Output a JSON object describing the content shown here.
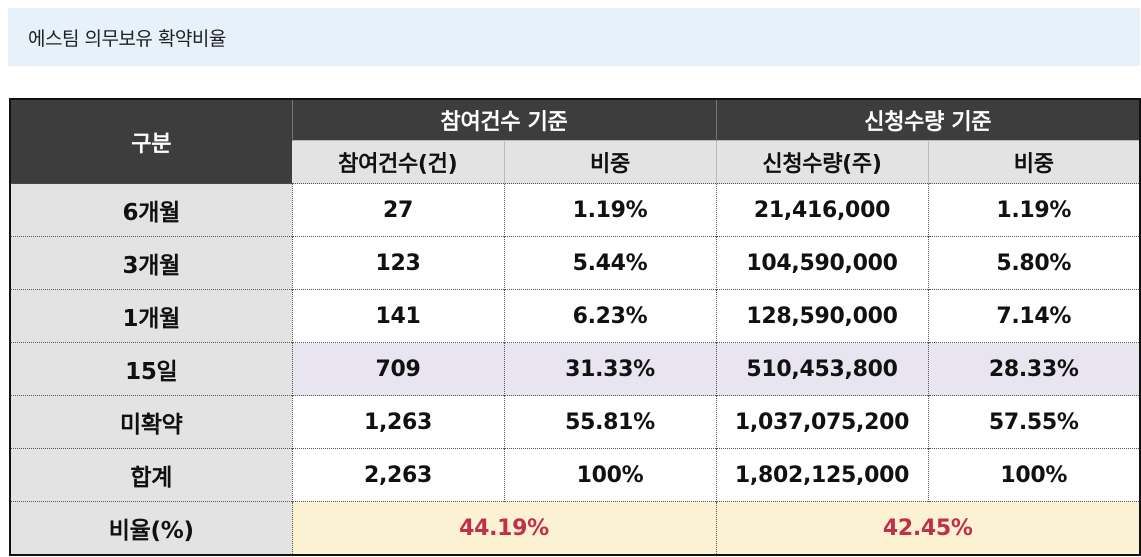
{
  "caption": "에스팀 의무보유 확약비율",
  "table": {
    "corner_label": "구분",
    "group_headers": [
      "참여건수 기준",
      "신청수량 기준"
    ],
    "sub_headers": [
      "참여건수(건)",
      "비중",
      "신청수량(주)",
      "비중"
    ],
    "rows": [
      {
        "label": "6개월",
        "values": [
          "27",
          "1.19%",
          "21,416,000",
          "1.19%"
        ]
      },
      {
        "label": "3개월",
        "values": [
          "123",
          "5.44%",
          "104,590,000",
          "5.80%"
        ]
      },
      {
        "label": "1개월",
        "values": [
          "141",
          "6.23%",
          "128,590,000",
          "7.14%"
        ]
      },
      {
        "label": "15일",
        "values": [
          "709",
          "31.33%",
          "510,453,800",
          "28.33%"
        ]
      },
      {
        "label": "미확약",
        "values": [
          "1,263",
          "55.81%",
          "1,037,075,200",
          "57.55%"
        ]
      },
      {
        "label": "합계",
        "values": [
          "2,263",
          "100%",
          "1,802,125,000",
          "100%"
        ]
      }
    ],
    "ratio_row": {
      "label": "비율(%)",
      "values": [
        "44.19%",
        "42.45%"
      ]
    },
    "highlight_color": "#e8e5f1",
    "ratio_color": "#c0304a"
  }
}
